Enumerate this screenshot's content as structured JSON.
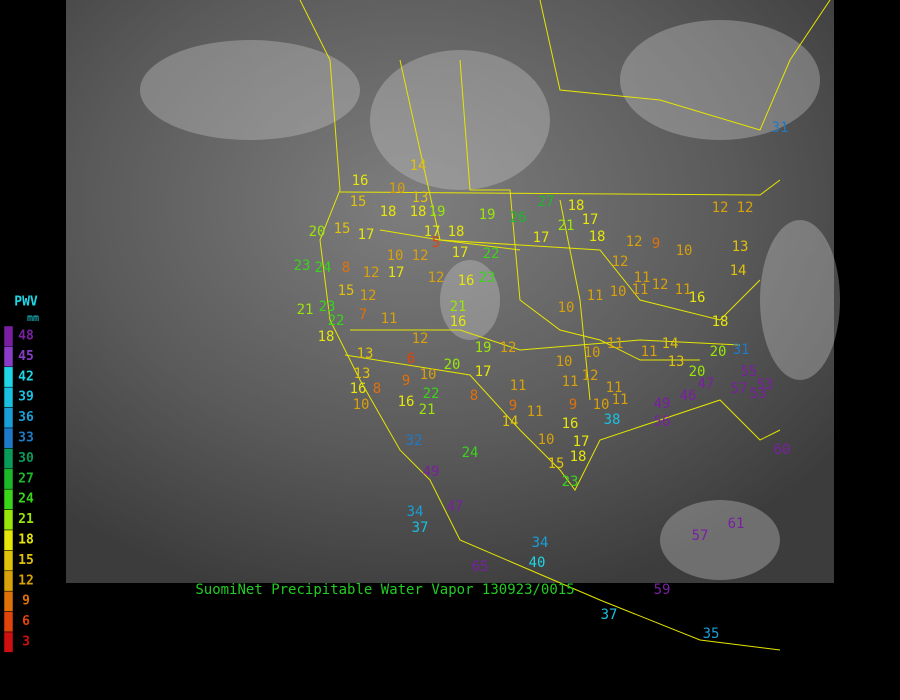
{
  "title": "SuomiNet Precipitable Water Vapor 130923/0015",
  "legend": {
    "title": "PWV",
    "unit": "mm",
    "levels": [
      48,
      45,
      42,
      39,
      36,
      33,
      30,
      27,
      24,
      21,
      18,
      15,
      12,
      9,
      6,
      3
    ],
    "colors": [
      "#7a1fa2",
      "#8a3cc8",
      "#1ed6e6",
      "#19c0e0",
      "#1a9ed8",
      "#1e7ac8",
      "#0a9a5a",
      "#1cb82a",
      "#3ad41a",
      "#9ae60a",
      "#e6e60a",
      "#e0c20a",
      "#d8a00a",
      "#e0700a",
      "#e0440a",
      "#d01010"
    ]
  },
  "stations": [
    14,
    16,
    15,
    10,
    13,
    18,
    18,
    19,
    19,
    26,
    27,
    18,
    17,
    21,
    17,
    18,
    20,
    15,
    17,
    17,
    18,
    5,
    10,
    12,
    17,
    22,
    23,
    24,
    8,
    12,
    17,
    12,
    16,
    23,
    15,
    12,
    21,
    23,
    22,
    7,
    11,
    21,
    16,
    10,
    11,
    10,
    11,
    12,
    11,
    12,
    11,
    16,
    12,
    9,
    10,
    13,
    14,
    18,
    20,
    31,
    18,
    12,
    13,
    6,
    20,
    19,
    12,
    17,
    10,
    10,
    11,
    11,
    14,
    13,
    20,
    13,
    9,
    10,
    11,
    11,
    12,
    11,
    16,
    8,
    22,
    8,
    10,
    16,
    21,
    9,
    11,
    9,
    10,
    11,
    14,
    16,
    38,
    56,
    49,
    46,
    47,
    55,
    57,
    53,
    53,
    32,
    24,
    10,
    17,
    15,
    18,
    23,
    49,
    47,
    34,
    37,
    34,
    40,
    65,
    57,
    61,
    60,
    59,
    37,
    35,
    31,
    12,
    12
  ]
}
